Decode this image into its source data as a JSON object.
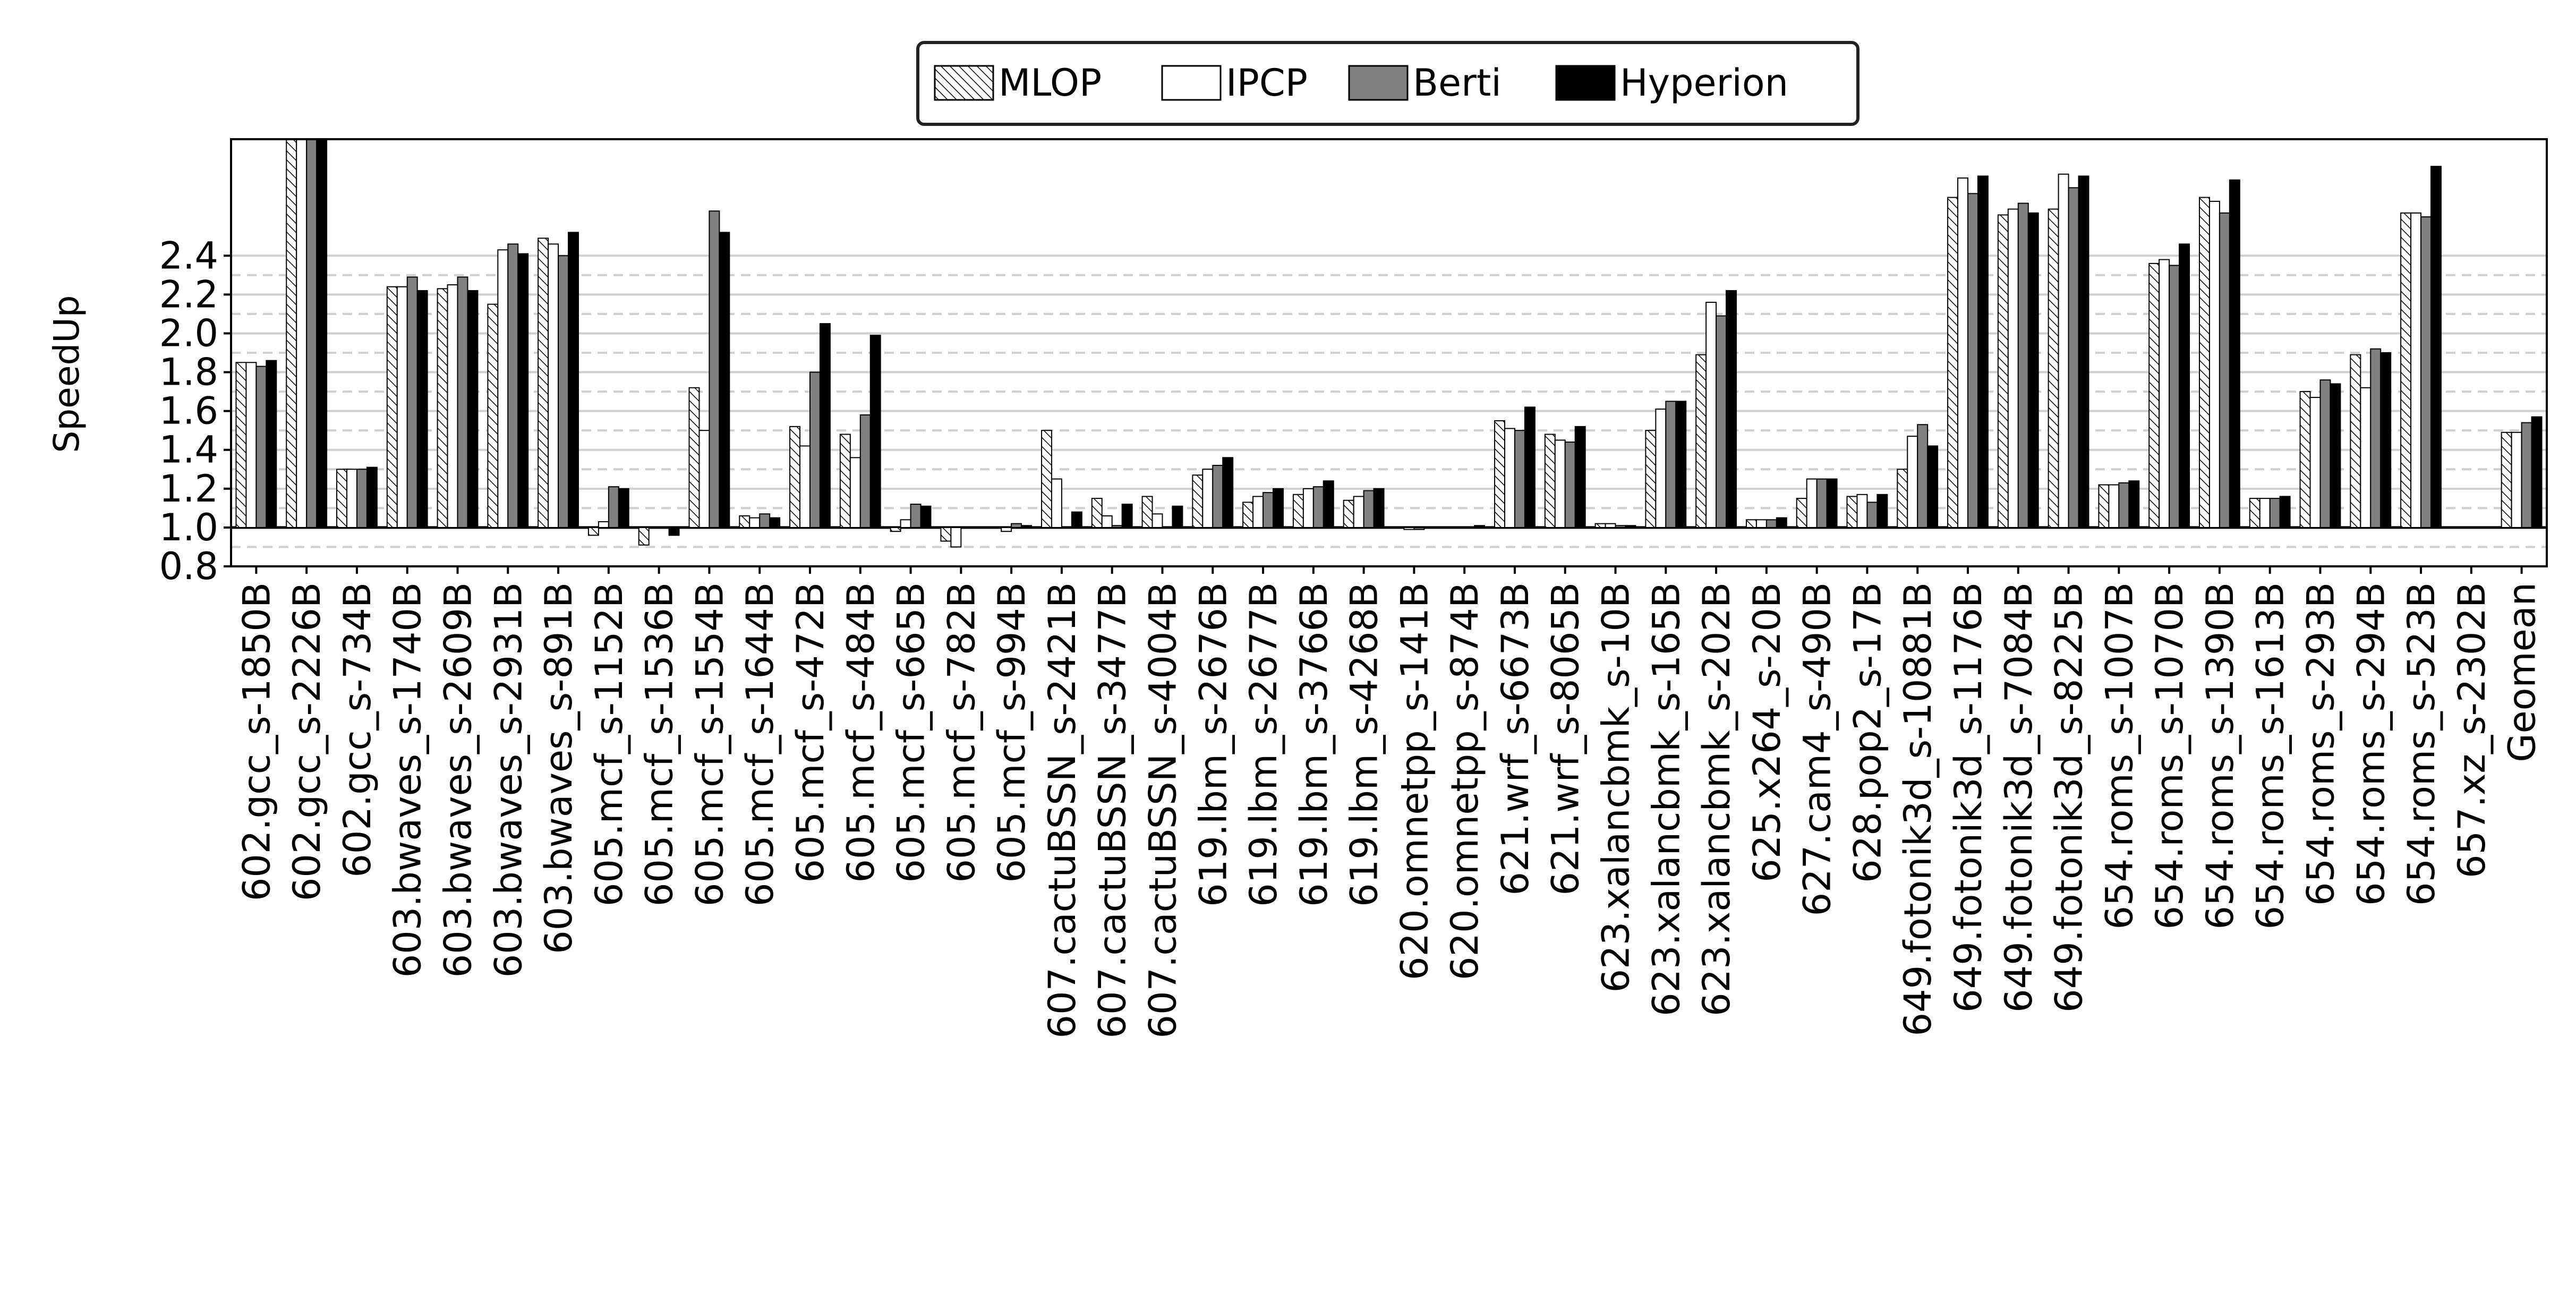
{
  "chart_data": {
    "type": "bar",
    "ylabel": "SpeedUp",
    "ylim": [
      0.8,
      3.0
    ],
    "yticks": [
      0.8,
      1.0,
      1.2,
      1.4,
      1.6,
      1.8,
      2.0,
      2.2,
      2.4
    ],
    "ytick_labels": [
      "0.8",
      "1.0",
      "1.2",
      "1.4",
      "1.6",
      "1.8",
      "2.0",
      "2.2",
      "2.4"
    ],
    "reference_line": 1.0,
    "grid": "horizontal",
    "legend_position": "top-center",
    "categories": [
      "602.gcc_s-1850B",
      "602.gcc_s-2226B",
      "602.gcc_s-734B",
      "603.bwaves_s-1740B",
      "603.bwaves_s-2609B",
      "603.bwaves_s-2931B",
      "603.bwaves_s-891B",
      "605.mcf_s-1152B",
      "605.mcf_s-1536B",
      "605.mcf_s-1554B",
      "605.mcf_s-1644B",
      "605.mcf_s-472B",
      "605.mcf_s-484B",
      "605.mcf_s-665B",
      "605.mcf_s-782B",
      "605.mcf_s-994B",
      "607.cactuBSSN_s-2421B",
      "607.cactuBSSN_s-3477B",
      "607.cactuBSSN_s-4004B",
      "619.lbm_s-2676B",
      "619.lbm_s-2677B",
      "619.lbm_s-3766B",
      "619.lbm_s-4268B",
      "620.omnetpp_s-141B",
      "620.omnetpp_s-874B",
      "621.wrf_s-6673B",
      "621.wrf_s-8065B",
      "623.xalancbmk_s-10B",
      "623.xalancbmk_s-165B",
      "623.xalancbmk_s-202B",
      "625.x264_s-20B",
      "627.cam4_s-490B",
      "628.pop2_s-17B",
      "649.fotonik3d_s-10881B",
      "649.fotonik3d_s-1176B",
      "649.fotonik3d_s-7084B",
      "649.fotonik3d_s-8225B",
      "654.roms_s-1007B",
      "654.roms_s-1070B",
      "654.roms_s-1390B",
      "654.roms_s-1613B",
      "654.roms_s-293B",
      "654.roms_s-294B",
      "654.roms_s-523B",
      "657.xz_s-2302B",
      "Geomean"
    ],
    "series": [
      {
        "name": "MLOP",
        "style": "hatched",
        "color": "#ffffff",
        "values": [
          1.85,
          3.0,
          1.3,
          2.24,
          2.23,
          2.15,
          2.49,
          0.96,
          0.91,
          1.72,
          1.06,
          1.52,
          1.48,
          0.98,
          0.93,
          1.0,
          1.5,
          1.15,
          1.16,
          1.27,
          1.13,
          1.17,
          1.14,
          1.0,
          1.0,
          1.55,
          1.48,
          1.02,
          1.5,
          1.89,
          1.04,
          1.15,
          1.16,
          1.3,
          2.7,
          2.61,
          2.64,
          1.22,
          2.36,
          2.7,
          1.15,
          1.7,
          1.89,
          2.62,
          1.0,
          1.49
        ]
      },
      {
        "name": "IPCP",
        "style": "white",
        "color": "#ffffff",
        "values": [
          1.85,
          3.0,
          1.3,
          2.24,
          2.25,
          2.43,
          2.46,
          1.03,
          1.0,
          1.5,
          1.05,
          1.42,
          1.36,
          1.04,
          0.9,
          0.98,
          1.25,
          1.06,
          1.07,
          1.3,
          1.16,
          1.2,
          1.16,
          0.99,
          1.0,
          1.51,
          1.45,
          1.02,
          1.61,
          2.16,
          1.04,
          1.25,
          1.17,
          1.47,
          2.8,
          2.64,
          2.82,
          1.22,
          2.38,
          2.68,
          1.15,
          1.67,
          1.72,
          2.62,
          1.0,
          1.49
        ]
      },
      {
        "name": "Berti",
        "style": "gray",
        "color": "#808080",
        "values": [
          1.83,
          3.0,
          1.3,
          2.29,
          2.29,
          2.46,
          2.4,
          1.21,
          1.0,
          2.63,
          1.07,
          1.8,
          1.58,
          1.12,
          1.0,
          1.02,
          1.0,
          1.01,
          1.0,
          1.32,
          1.18,
          1.21,
          1.19,
          0.99,
          1.0,
          1.5,
          1.44,
          1.01,
          1.65,
          2.09,
          1.04,
          1.25,
          1.13,
          1.53,
          2.72,
          2.67,
          2.75,
          1.23,
          2.35,
          2.62,
          1.15,
          1.76,
          1.92,
          2.6,
          1.0,
          1.54
        ]
      },
      {
        "name": "Hyperion",
        "style": "black",
        "color": "#000000",
        "values": [
          1.86,
          3.0,
          1.31,
          2.22,
          2.22,
          2.41,
          2.52,
          1.2,
          0.96,
          2.52,
          1.05,
          2.05,
          1.99,
          1.11,
          1.0,
          1.01,
          1.08,
          1.12,
          1.11,
          1.36,
          1.2,
          1.24,
          1.2,
          1.0,
          1.01,
          1.62,
          1.52,
          1.01,
          1.65,
          2.22,
          1.05,
          1.25,
          1.17,
          1.42,
          2.81,
          2.62,
          2.81,
          1.24,
          2.46,
          2.79,
          1.16,
          1.74,
          1.9,
          2.86,
          1.0,
          1.57
        ]
      }
    ]
  }
}
